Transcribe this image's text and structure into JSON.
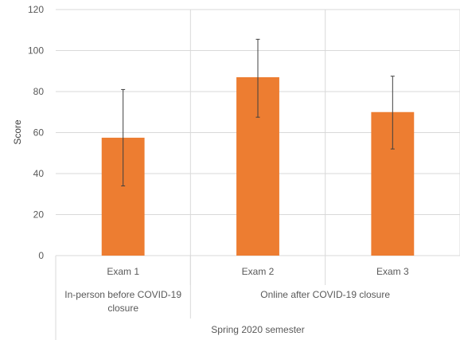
{
  "chart_data": {
    "type": "bar",
    "title": "",
    "ylabel": "Score",
    "xlabel": "Spring 2020 semester",
    "ylim": [
      0,
      120
    ],
    "ytick_step": 20,
    "grid": true,
    "bar_color": "#ed7d31",
    "categories": [
      "Exam 1",
      "Exam 2",
      "Exam 3"
    ],
    "values": [
      57.5,
      87,
      70
    ],
    "error": [
      {
        "low": 34,
        "high": 81
      },
      {
        "low": 67.5,
        "high": 105.5
      },
      {
        "low": 52,
        "high": 87.5
      }
    ],
    "groups": [
      {
        "label_lines": [
          "In-person before COVID-19",
          "closure"
        ],
        "categories": [
          "Exam 1"
        ]
      },
      {
        "label_lines": [
          "Online after COVID-19 closure"
        ],
        "categories": [
          "Exam 2",
          "Exam 3"
        ]
      }
    ],
    "supergroup_label": "Spring 2020 semester"
  }
}
